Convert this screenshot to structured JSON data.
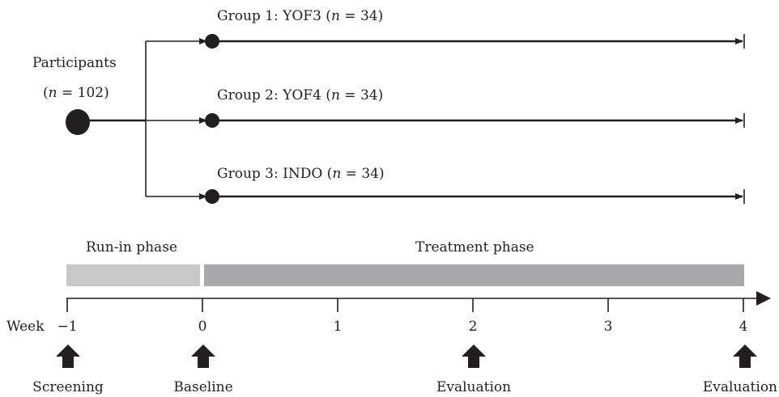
{
  "participants": {
    "label": "Participants",
    "n_open": "(",
    "n_var": "n",
    "n_eq": " = 102)"
  },
  "groups": [
    {
      "prefix": "Group 1: YOF3 (",
      "n_var": "n",
      "suffix": " = 34)"
    },
    {
      "prefix": "Group 2: YOF4 (",
      "n_var": "n",
      "suffix": " = 34)"
    },
    {
      "prefix": "Group 3: INDO (",
      "n_var": "n",
      "suffix": " = 34)"
    }
  ],
  "phases": {
    "run_in": "Run-in phase",
    "treatment": "Treatment phase"
  },
  "colors": {
    "run_in": "#c8c8c9",
    "treatment": "#a9a9ab",
    "ink": "#231f20"
  },
  "timeline": {
    "axis_label": "Week",
    "ticks": [
      "−1",
      "0",
      "1",
      "2",
      "3",
      "4"
    ],
    "events": [
      "Screening",
      "Baseline",
      "Evaluation",
      "Evaluation"
    ]
  }
}
